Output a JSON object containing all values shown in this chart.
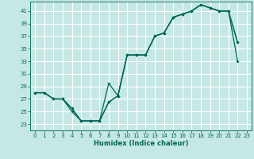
{
  "xlabel": "Humidex (Indice chaleur)",
  "bg_color": "#c5e8e5",
  "grid_color": "#ffffff",
  "line_color": "#006655",
  "xlim": [
    -0.5,
    23.5
  ],
  "ylim": [
    22.0,
    42.5
  ],
  "xticks": [
    0,
    1,
    2,
    3,
    4,
    5,
    6,
    7,
    8,
    9,
    10,
    11,
    12,
    13,
    14,
    15,
    16,
    17,
    18,
    19,
    20,
    21,
    22,
    23
  ],
  "yticks": [
    23,
    25,
    27,
    29,
    31,
    33,
    35,
    37,
    39,
    41
  ],
  "line1_x": [
    0,
    1,
    2,
    3,
    4,
    5,
    6,
    7,
    8,
    9,
    10,
    11,
    12,
    13,
    14,
    15,
    16,
    17,
    18,
    19,
    20,
    21,
    22
  ],
  "line1_y": [
    28,
    28,
    27,
    27,
    25,
    23.5,
    23.5,
    23.5,
    29.5,
    27.5,
    34,
    34,
    34,
    37,
    37.5,
    40,
    40.5,
    41,
    42,
    41.5,
    41,
    41,
    36
  ],
  "line2_x": [
    0,
    1,
    2,
    3,
    4,
    5,
    6,
    7,
    8,
    9,
    10,
    11,
    12,
    13,
    14,
    15,
    16,
    17,
    18,
    19,
    20,
    21,
    22
  ],
  "line2_y": [
    28,
    28,
    27,
    27,
    25.5,
    23.5,
    23.5,
    23.5,
    26.5,
    27.5,
    34,
    34,
    34,
    37,
    37.5,
    40,
    40.5,
    41,
    42,
    41.5,
    41,
    41,
    33
  ],
  "line3_x": [
    0,
    1,
    2,
    3,
    4,
    5,
    6,
    7,
    8,
    9,
    10,
    11,
    12,
    13,
    14,
    15,
    16,
    17,
    18,
    19,
    20,
    21,
    22
  ],
  "line3_y": [
    28,
    28,
    27,
    27,
    25.5,
    23.5,
    23.5,
    23.5,
    26.5,
    27.5,
    34,
    34,
    34,
    37,
    37.5,
    40,
    40.5,
    41,
    42,
    41.5,
    41,
    41,
    36
  ]
}
